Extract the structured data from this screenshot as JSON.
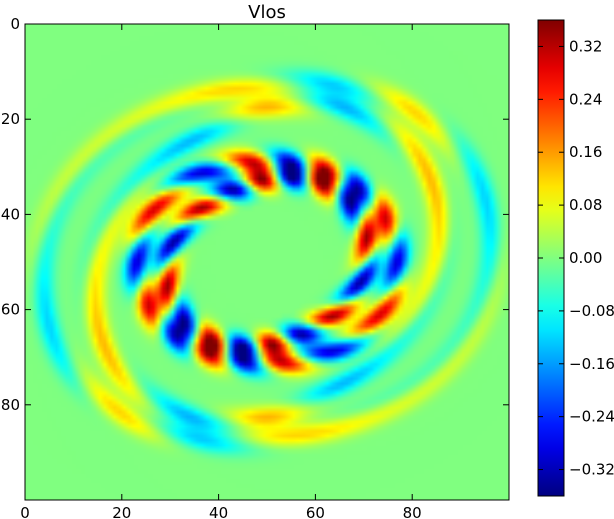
{
  "chart_data": {
    "type": "heatmap",
    "title": "Vlos",
    "xlabel": "",
    "ylabel": "",
    "grid_size": 100,
    "xlim": [
      0,
      100
    ],
    "ylim": [
      100,
      0
    ],
    "x_ticks": [
      0,
      20,
      40,
      60,
      80
    ],
    "y_ticks": [
      0,
      20,
      40,
      60,
      80
    ],
    "x_tick_labels": [
      "0",
      "20",
      "40",
      "60",
      "80"
    ],
    "y_tick_labels": [
      "0",
      "20",
      "40",
      "60",
      "80"
    ],
    "colormap": "jet",
    "color_range": [
      -0.36,
      0.36
    ],
    "background_value": 0.0,
    "colorbar_ticks": [
      0.32,
      0.24,
      0.16,
      0.08,
      0.0,
      -0.08,
      -0.16,
      -0.24,
      -0.32
    ],
    "colorbar_tick_labels": [
      "0.32",
      "0.24",
      "0.16",
      "0.08",
      "0.00",
      "−0.08",
      "−0.16",
      "−0.24",
      "−0.32"
    ],
    "center": [
      50,
      50
    ],
    "rings": [
      {
        "radius": 42,
        "amplitude": 0.12,
        "lobes": 4,
        "phase": 0.4
      },
      {
        "radius": 34,
        "amplitude": 0.14,
        "lobes": 4,
        "phase": 1.2
      },
      {
        "radius": 24,
        "amplitude": 0.3,
        "lobes": 8,
        "phase": 0.0
      },
      {
        "radius": 19,
        "amplitude": 0.34,
        "lobes": 8,
        "phase": 0.8
      }
    ],
    "inner_calm_radius": 12
  }
}
